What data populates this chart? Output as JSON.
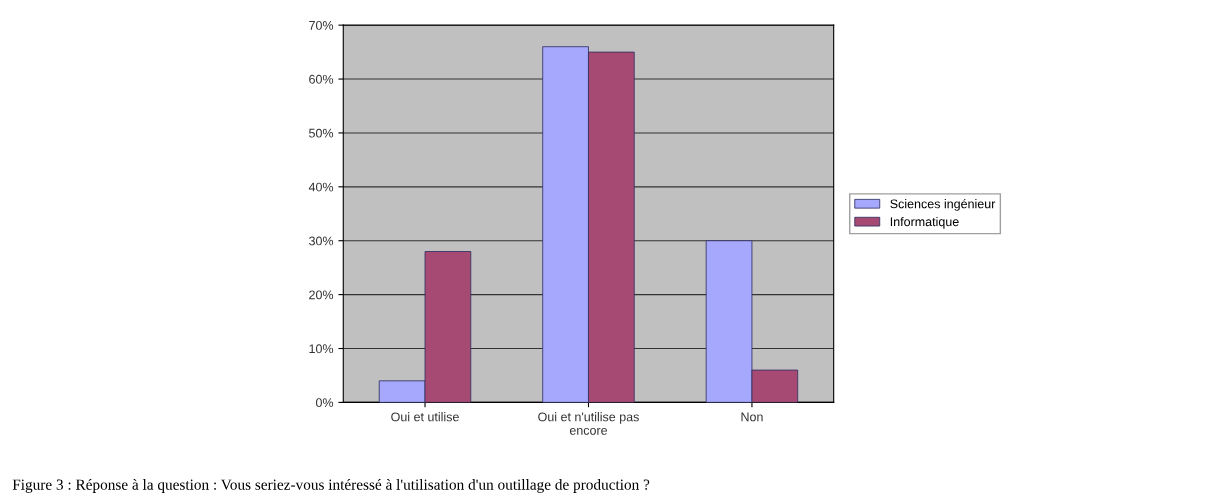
{
  "chart_data": {
    "type": "bar",
    "categories": [
      "Oui et utilise",
      "Oui et n'utilise pas\nencore",
      "Non"
    ],
    "series": [
      {
        "name": "Sciences ingénieur",
        "color": "#a6a8fe",
        "values": [
          4,
          66,
          30
        ]
      },
      {
        "name": "Informatique",
        "color": "#a64a74",
        "values": [
          28,
          65,
          6
        ]
      }
    ],
    "ylim": [
      0,
      70
    ],
    "yticks": [
      {
        "value": 0,
        "label": "0%"
      },
      {
        "value": 10,
        "label": "10%"
      },
      {
        "value": 20,
        "label": "20%"
      },
      {
        "value": 30,
        "label": "30%"
      },
      {
        "value": 40,
        "label": "40%"
      },
      {
        "value": 50,
        "label": "50%"
      },
      {
        "value": 60,
        "label": "60%"
      },
      {
        "value": 70,
        "label": "70%"
      }
    ],
    "grid": "y",
    "legend": "right",
    "annotations": [
      "Figure 3 : Réponse à la question : Vous seriez-vous intéressé à l'utilisation d'un outillage de production ?"
    ]
  }
}
